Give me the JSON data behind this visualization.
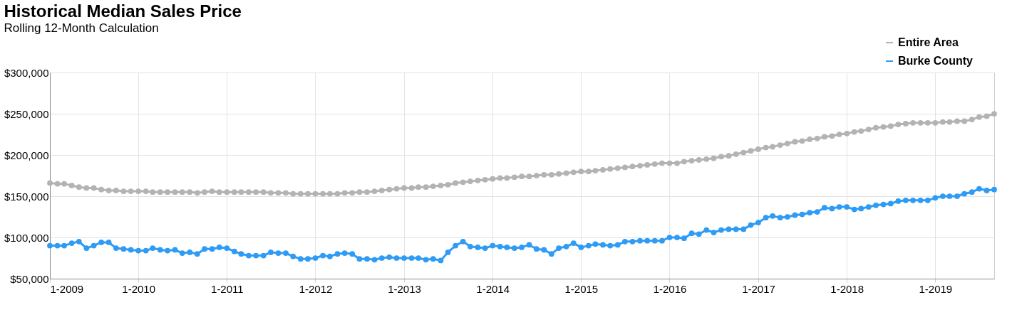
{
  "chart_data": {
    "type": "line",
    "title": "Historical Median Sales Price",
    "subtitle": "Rolling 12-Month Calculation",
    "x": [
      "2009-01",
      "2009-02",
      "2009-03",
      "2009-04",
      "2009-05",
      "2009-06",
      "2009-07",
      "2009-08",
      "2009-09",
      "2009-10",
      "2009-11",
      "2009-12",
      "2010-01",
      "2010-02",
      "2010-03",
      "2010-04",
      "2010-05",
      "2010-06",
      "2010-07",
      "2010-08",
      "2010-09",
      "2010-10",
      "2010-11",
      "2010-12",
      "2011-01",
      "2011-02",
      "2011-03",
      "2011-04",
      "2011-05",
      "2011-06",
      "2011-07",
      "2011-08",
      "2011-09",
      "2011-10",
      "2011-11",
      "2011-12",
      "2012-01",
      "2012-02",
      "2012-03",
      "2012-04",
      "2012-05",
      "2012-06",
      "2012-07",
      "2012-08",
      "2012-09",
      "2012-10",
      "2012-11",
      "2012-12",
      "2013-01",
      "2013-02",
      "2013-03",
      "2013-04",
      "2013-05",
      "2013-06",
      "2013-07",
      "2013-08",
      "2013-09",
      "2013-10",
      "2013-11",
      "2013-12",
      "2014-01",
      "2014-02",
      "2014-03",
      "2014-04",
      "2014-05",
      "2014-06",
      "2014-07",
      "2014-08",
      "2014-09",
      "2014-10",
      "2014-11",
      "2014-12",
      "2015-01",
      "2015-02",
      "2015-03",
      "2015-04",
      "2015-05",
      "2015-06",
      "2015-07",
      "2015-08",
      "2015-09",
      "2015-10",
      "2015-11",
      "2015-12",
      "2016-01",
      "2016-02",
      "2016-03",
      "2016-04",
      "2016-05",
      "2016-06",
      "2016-07",
      "2016-08",
      "2016-09",
      "2016-10",
      "2016-11",
      "2016-12",
      "2017-01",
      "2017-02",
      "2017-03",
      "2017-04",
      "2017-05",
      "2017-06",
      "2017-07",
      "2017-08",
      "2017-09",
      "2017-10",
      "2017-11",
      "2017-12",
      "2018-01",
      "2018-02",
      "2018-03",
      "2018-04",
      "2018-05",
      "2018-06",
      "2018-07",
      "2018-08",
      "2018-09",
      "2018-10",
      "2018-11",
      "2018-12",
      "2019-01",
      "2019-02",
      "2019-03",
      "2019-04",
      "2019-05",
      "2019-06",
      "2019-07",
      "2019-08",
      "2019-09"
    ],
    "series": [
      {
        "name": "Entire Area",
        "color": "#b3b3b3",
        "values": [
          166000,
          165000,
          165000,
          163000,
          161000,
          160000,
          160000,
          158000,
          157000,
          157000,
          156000,
          156000,
          156000,
          156000,
          155000,
          155000,
          155000,
          155000,
          155000,
          155000,
          154000,
          155000,
          156000,
          155000,
          155000,
          155000,
          155000,
          155000,
          155000,
          155000,
          154000,
          154000,
          154000,
          153000,
          153000,
          153000,
          153000,
          153000,
          153000,
          153000,
          154000,
          154000,
          155000,
          155000,
          156000,
          157000,
          158000,
          159000,
          160000,
          160000,
          161000,
          161000,
          162000,
          163000,
          164000,
          166000,
          167000,
          168000,
          169000,
          170000,
          171000,
          172000,
          172000,
          173000,
          174000,
          174000,
          175000,
          176000,
          176000,
          177000,
          178000,
          179000,
          180000,
          180000,
          181000,
          182000,
          183000,
          184000,
          185000,
          186000,
          187000,
          188000,
          189000,
          190000,
          190000,
          190000,
          192000,
          193000,
          194000,
          195000,
          196000,
          198000,
          199000,
          201000,
          203000,
          205000,
          207000,
          209000,
          210000,
          212000,
          214000,
          216000,
          217000,
          219000,
          220000,
          222000,
          223000,
          225000,
          226000,
          228000,
          229000,
          231000,
          233000,
          234000,
          235000,
          237000,
          238000,
          239000,
          239000,
          239000,
          239000,
          240000,
          240000,
          241000,
          241000,
          243000,
          246000,
          247000,
          250000
        ]
      },
      {
        "name": "Burke County",
        "color": "#2e9bf5",
        "values": [
          90000,
          90000,
          90000,
          93000,
          95000,
          87000,
          90000,
          94000,
          94000,
          87000,
          86000,
          85000,
          84000,
          84000,
          87000,
          85000,
          84000,
          85000,
          81000,
          82000,
          80000,
          86000,
          86000,
          88000,
          87000,
          83000,
          80000,
          78000,
          78000,
          78000,
          82000,
          81000,
          81000,
          77000,
          74000,
          74000,
          75000,
          78000,
          77000,
          80000,
          81000,
          80000,
          74000,
          74000,
          73000,
          75000,
          76000,
          75000,
          75000,
          75000,
          75000,
          73000,
          74000,
          72000,
          82000,
          90000,
          95000,
          89000,
          88000,
          87000,
          90000,
          89000,
          88000,
          87000,
          88000,
          91000,
          86000,
          85000,
          80000,
          87000,
          89000,
          93000,
          88000,
          90000,
          92000,
          91000,
          90000,
          91000,
          95000,
          95000,
          96000,
          96000,
          96000,
          96000,
          100000,
          100000,
          99000,
          105000,
          104000,
          109000,
          106000,
          109000,
          110000,
          110000,
          110000,
          115000,
          118000,
          124000,
          126000,
          124000,
          125000,
          127000,
          128000,
          130000,
          131000,
          136000,
          135000,
          137000,
          137000,
          134000,
          135000,
          137000,
          139000,
          140000,
          141000,
          144000,
          145000,
          145000,
          145000,
          145000,
          148000,
          150000,
          150000,
          150000,
          153000,
          155000,
          159000,
          157000,
          158000
        ]
      }
    ],
    "ylim": [
      50000,
      300000
    ],
    "yticks": [
      {
        "value": 50000,
        "label": "$50,000"
      },
      {
        "value": 100000,
        "label": "$100,000"
      },
      {
        "value": 150000,
        "label": "$150,000"
      },
      {
        "value": 200000,
        "label": "$200,000"
      },
      {
        "value": 250000,
        "label": "$250,000"
      },
      {
        "value": 300000,
        "label": "$300,000"
      }
    ],
    "xlim": [
      "2009-01",
      "2019-09"
    ],
    "xticks": [
      {
        "value": "2009-01",
        "label": "1-2009"
      },
      {
        "value": "2010-01",
        "label": "1-2010"
      },
      {
        "value": "2011-01",
        "label": "1-2011"
      },
      {
        "value": "2012-01",
        "label": "1-2012"
      },
      {
        "value": "2013-01",
        "label": "1-2013"
      },
      {
        "value": "2014-01",
        "label": "1-2014"
      },
      {
        "value": "2015-01",
        "label": "1-2015"
      },
      {
        "value": "2016-01",
        "label": "1-2016"
      },
      {
        "value": "2017-01",
        "label": "1-2017"
      },
      {
        "value": "2018-01",
        "label": "1-2018"
      },
      {
        "value": "2019-01",
        "label": "1-2019"
      }
    ],
    "grid": true,
    "legend": "top right",
    "marker": "circle",
    "line_style": "solid"
  }
}
